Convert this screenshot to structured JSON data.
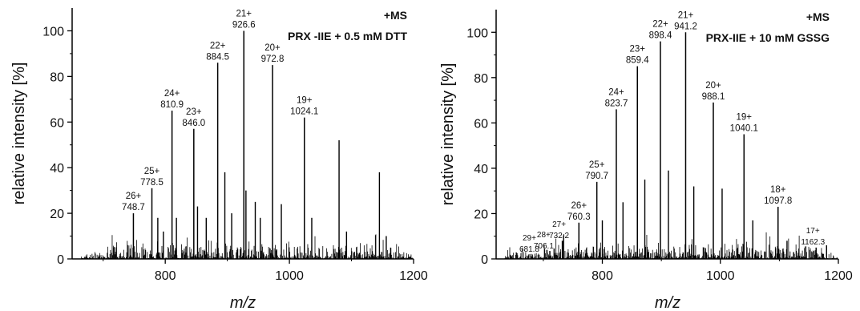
{
  "chart_data": [
    {
      "type": "bar",
      "xlabel": "m/z",
      "ylabel": "relative intensity [%]",
      "xlim": [
        650,
        1200
      ],
      "ylim": [
        0,
        110
      ],
      "xticks": [
        800,
        1000,
        1200
      ],
      "yticks": [
        0,
        20,
        40,
        60,
        80,
        100
      ],
      "annotation_mode": "+MS",
      "annotation_sample": "PRX -IIE + 0.5 mM DTT",
      "peaks": [
        {
          "charge": "26+",
          "mz": 748.7,
          "intensity": 20,
          "label": "748.7"
        },
        {
          "charge": "25+",
          "mz": 778.5,
          "intensity": 31,
          "label": "778.5"
        },
        {
          "charge": "24+",
          "mz": 810.9,
          "intensity": 65,
          "label": "810.9"
        },
        {
          "charge": "23+",
          "mz": 846.0,
          "intensity": 57,
          "label": "846.0"
        },
        {
          "charge": "22+",
          "mz": 884.5,
          "intensity": 86,
          "label": "884.5"
        },
        {
          "charge": "21+",
          "mz": 926.6,
          "intensity": 100,
          "label": "926.6"
        },
        {
          "charge": "20+",
          "mz": 972.8,
          "intensity": 85,
          "label": "972.8"
        },
        {
          "charge": "19+",
          "mz": 1024.1,
          "intensity": 62,
          "label": "1024.1"
        }
      ],
      "other_peaks": [
        {
          "mz": 788,
          "intensity": 18
        },
        {
          "mz": 797,
          "intensity": 12
        },
        {
          "mz": 818,
          "intensity": 18
        },
        {
          "mz": 852,
          "intensity": 23
        },
        {
          "mz": 866,
          "intensity": 18
        },
        {
          "mz": 896,
          "intensity": 38
        },
        {
          "mz": 907,
          "intensity": 20
        },
        {
          "mz": 930,
          "intensity": 30
        },
        {
          "mz": 945,
          "intensity": 25
        },
        {
          "mz": 953,
          "intensity": 18
        },
        {
          "mz": 987,
          "intensity": 24
        },
        {
          "mz": 1036,
          "intensity": 18
        },
        {
          "mz": 1080,
          "intensity": 52
        },
        {
          "mz": 1092,
          "intensity": 12
        },
        {
          "mz": 1145,
          "intensity": 38
        },
        {
          "mz": 1156,
          "intensity": 10
        }
      ]
    },
    {
      "type": "bar",
      "xlabel": "m/z",
      "ylabel": "relative intensity [%]",
      "xlim": [
        620,
        1200
      ],
      "ylim": [
        0,
        110
      ],
      "xticks": [
        800,
        1000,
        1200
      ],
      "yticks": [
        0,
        20,
        40,
        60,
        80,
        100
      ],
      "annotation_mode": "+MS",
      "annotation_sample": "PRX-IIE + 10 mM GSSG",
      "peaks": [
        {
          "charge": "29+",
          "mz": 681.8,
          "intensity": 1,
          "label": "681.8"
        },
        {
          "charge": "28+",
          "mz": 706.1,
          "intensity": 4,
          "label": "706.1"
        },
        {
          "charge": "27+",
          "mz": 732.2,
          "intensity": 8,
          "label": "732.2"
        },
        {
          "charge": "26+",
          "mz": 760.3,
          "intensity": 16,
          "label": "760.3"
        },
        {
          "charge": "25+",
          "mz": 790.7,
          "intensity": 34,
          "label": "790.7"
        },
        {
          "charge": "24+",
          "mz": 823.7,
          "intensity": 66,
          "label": "823.7"
        },
        {
          "charge": "23+",
          "mz": 859.4,
          "intensity": 85,
          "label": "859.4"
        },
        {
          "charge": "22+",
          "mz": 898.4,
          "intensity": 96,
          "label": "898.4"
        },
        {
          "charge": "21+",
          "mz": 941.2,
          "intensity": 100,
          "label": "941.2"
        },
        {
          "charge": "20+",
          "mz": 988.1,
          "intensity": 69,
          "label": "988.1"
        },
        {
          "charge": "19+",
          "mz": 1040.1,
          "intensity": 55,
          "label": "1040.1"
        },
        {
          "charge": "18+",
          "mz": 1097.8,
          "intensity": 23,
          "label": "1097.8"
        },
        {
          "charge": "17+",
          "mz": 1162.3,
          "intensity": 5,
          "label": "1162.3"
        }
      ],
      "other_peaks": [
        {
          "mz": 800,
          "intensity": 17
        },
        {
          "mz": 835,
          "intensity": 25
        },
        {
          "mz": 872,
          "intensity": 35
        },
        {
          "mz": 912,
          "intensity": 39
        },
        {
          "mz": 955,
          "intensity": 32
        },
        {
          "mz": 1003,
          "intensity": 31
        },
        {
          "mz": 1055,
          "intensity": 17
        },
        {
          "mz": 1113,
          "intensity": 8
        },
        {
          "mz": 1180,
          "intensity": 6
        }
      ]
    }
  ]
}
